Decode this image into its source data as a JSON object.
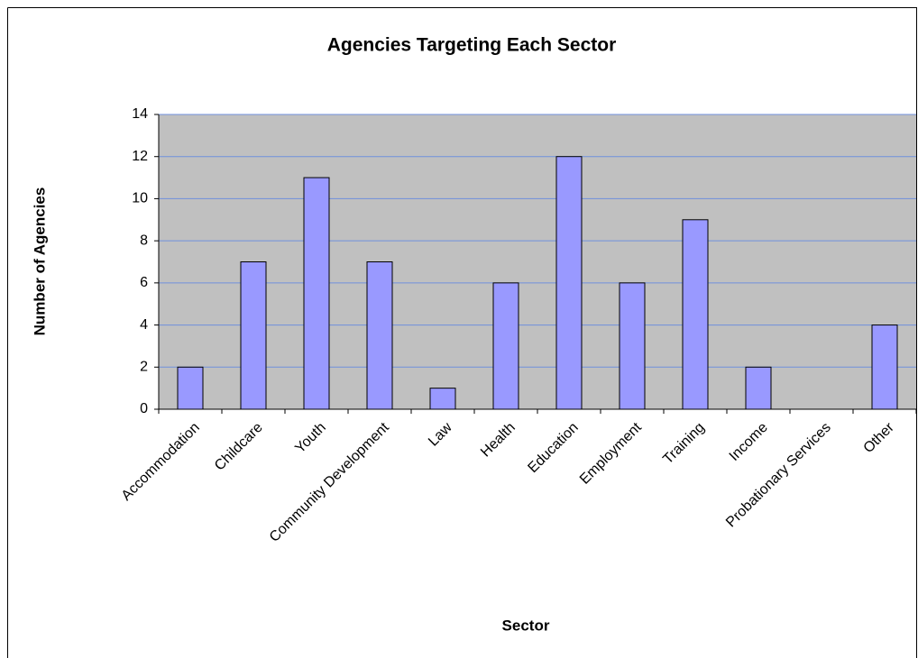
{
  "chart_data": {
    "type": "bar",
    "title": "Agencies Targeting Each Sector",
    "x_label": "Sector",
    "y_label": "Number of Agencies",
    "categories": [
      "Accommodation",
      "Childcare",
      "Youth",
      "Community Development",
      "Law",
      "Health",
      "Education",
      "Employment",
      "Training",
      "Income",
      "Probationary Services",
      "Other"
    ],
    "values": [
      2,
      7,
      11,
      7,
      1,
      6,
      12,
      6,
      9,
      2,
      0,
      4
    ],
    "color": "#9999ff",
    "plot_background": "#c0c0c0",
    "grid_color": "#6f8fdc",
    "ylim": [
      0,
      14
    ],
    "yticks": [
      0,
      2,
      4,
      6,
      8,
      10,
      12,
      14
    ],
    "grid": true
  }
}
